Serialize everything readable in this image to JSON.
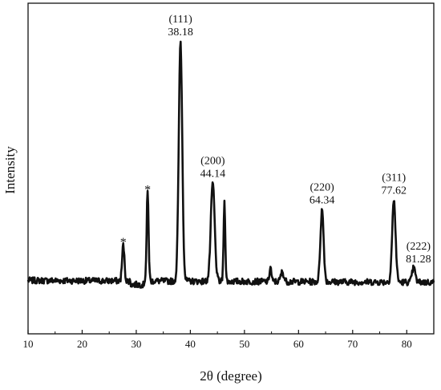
{
  "chart_data": {
    "type": "line",
    "title": "",
    "xlabel": "2θ (degree)",
    "ylabel": "Intensity",
    "xlim": [
      10,
      85
    ],
    "x_ticks": [
      10,
      20,
      30,
      40,
      50,
      60,
      70,
      80
    ],
    "y_ticks_shown": false,
    "grid": false,
    "legend": "none",
    "line_color": "#111111",
    "peaks": [
      {
        "x": 27.6,
        "y": 15,
        "miller": "",
        "value_label": "",
        "marker": "*"
      },
      {
        "x": 32.1,
        "y": 37,
        "miller": "",
        "value_label": "",
        "marker": "*"
      },
      {
        "x": 38.18,
        "y": 100,
        "miller": "(111)",
        "value_label": "38.18",
        "marker": ""
      },
      {
        "x": 44.14,
        "y": 41,
        "miller": "(200)",
        "value_label": "44.14",
        "marker": ""
      },
      {
        "x": 46.3,
        "y": 33,
        "miller": "",
        "value_label": "",
        "marker": ""
      },
      {
        "x": 54.8,
        "y": 6,
        "miller": "",
        "value_label": "",
        "marker": ""
      },
      {
        "x": 57.0,
        "y": 4,
        "miller": "",
        "value_label": "",
        "marker": ""
      },
      {
        "x": 64.34,
        "y": 30,
        "miller": "(220)",
        "value_label": "64.34",
        "marker": ""
      },
      {
        "x": 77.62,
        "y": 34,
        "miller": "(311)",
        "value_label": "77.62",
        "marker": ""
      },
      {
        "x": 81.28,
        "y": 6,
        "miller": "(222)",
        "value_label": "81.28",
        "marker": ""
      }
    ]
  }
}
